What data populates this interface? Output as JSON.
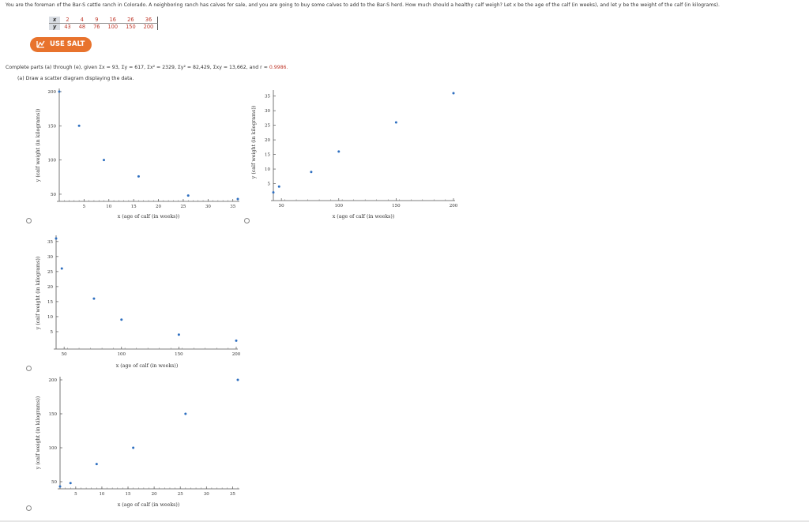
{
  "intro": "You are the foreman of the Bar-S cattle ranch in Colorado. A neighboring ranch has calves for sale, and you are going to buy some calves to add to the Bar-S herd. How much should a healthy calf weigh? Let x be the age of the calf (in weeks), and let y be the weight of the calf (in kilograms).",
  "table": {
    "x_label": "x",
    "y_label": "y",
    "x": [
      "2",
      "4",
      "9",
      "16",
      "26",
      "36"
    ],
    "y": [
      "43",
      "48",
      "76",
      "100",
      "150",
      "200"
    ]
  },
  "salt_label": "USE SALT",
  "given_text": "Complete parts (a) through (e), given Σx = 93, Σy = 617, Σx² = 2329, Σy² = 82,429, Σxy = 13,662, and r ≈ ",
  "r_value": "0.9986.",
  "part_a": "(a) Draw a scatter diagram displaying the data.",
  "colors": {
    "accent": "#e8732d",
    "point": "#2e6fc0",
    "red_value": "#c0392b"
  },
  "chart_data": [
    {
      "type": "scatter",
      "xlabel": "x (age of calf (in weeks))",
      "ylabel": "y (calf weight (in kilograms))",
      "x_ticks": [
        "5",
        "10",
        "15",
        "20",
        "25",
        "30",
        "35"
      ],
      "y_ticks": [
        "50",
        "100",
        "150",
        "200"
      ],
      "xlim": [
        0,
        36
      ],
      "ylim": [
        43,
        200
      ],
      "points": [
        [
          0,
          200
        ],
        [
          4,
          150
        ],
        [
          9,
          100
        ],
        [
          16,
          76
        ],
        [
          26,
          48
        ],
        [
          36,
          43
        ]
      ]
    },
    {
      "type": "scatter",
      "xlabel": "x (age of calf (in weeks))",
      "ylabel": "y (calf weight (in kilograms))",
      "x_ticks": [
        "50",
        "100",
        "150",
        "200"
      ],
      "y_ticks": [
        "5",
        "10",
        "15",
        "20",
        "25",
        "30",
        "35"
      ],
      "xlim": [
        43,
        200
      ],
      "ylim": [
        0,
        36
      ],
      "points": [
        [
          43,
          2
        ],
        [
          48,
          4
        ],
        [
          76,
          9
        ],
        [
          100,
          16
        ],
        [
          150,
          26
        ],
        [
          200,
          36
        ]
      ]
    },
    {
      "type": "scatter",
      "xlabel": "x (age of calf (in weeks))",
      "ylabel": "y (calf weight (in kilograms))",
      "x_ticks": [
        "50",
        "100",
        "150",
        "200"
      ],
      "y_ticks": [
        "5",
        "10",
        "15",
        "20",
        "25",
        "30",
        "35"
      ],
      "xlim": [
        43,
        200
      ],
      "ylim": [
        0,
        36
      ],
      "points": [
        [
          43,
          36
        ],
        [
          48,
          26
        ],
        [
          76,
          16
        ],
        [
          100,
          9
        ],
        [
          150,
          4
        ],
        [
          200,
          2
        ]
      ]
    },
    {
      "type": "scatter",
      "xlabel": "x (age of calf (in weeks))",
      "ylabel": "y (calf weight (in kilograms))",
      "x_ticks": [
        "5",
        "10",
        "15",
        "20",
        "25",
        "30",
        "35"
      ],
      "y_ticks": [
        "50",
        "100",
        "150",
        "200"
      ],
      "xlim": [
        2,
        36
      ],
      "ylim": [
        43,
        200
      ],
      "points": [
        [
          2,
          43
        ],
        [
          4,
          48
        ],
        [
          9,
          76
        ],
        [
          16,
          100
        ],
        [
          26,
          150
        ],
        [
          36,
          200
        ]
      ]
    }
  ]
}
